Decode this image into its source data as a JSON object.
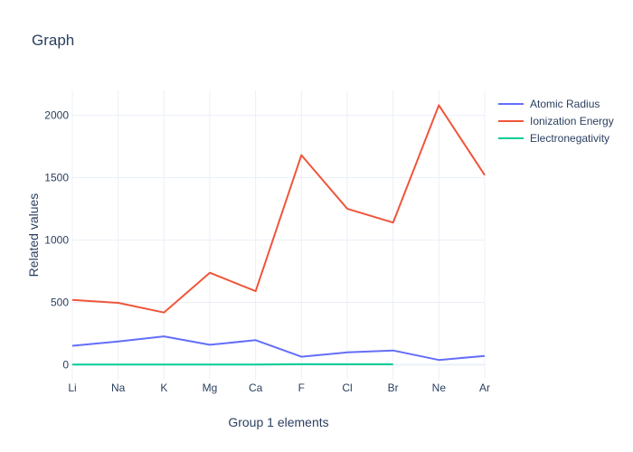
{
  "chart_data": {
    "type": "line",
    "title": "Graph",
    "xlabel": "Group 1 elements",
    "ylabel": "Related values",
    "categories": [
      "Li",
      "Na",
      "K",
      "Mg",
      "Ca",
      "F",
      "Cl",
      "Br",
      "Ne",
      "Ar"
    ],
    "y_ticks": [
      0,
      500,
      1000,
      1500,
      2000
    ],
    "ylim": [
      -120,
      2200
    ],
    "grid": true,
    "legend_position": "top-right",
    "series": [
      {
        "name": "Atomic Radius",
        "color": "#636efa",
        "values": [
          152,
          186,
          227,
          160,
          197,
          64,
          99,
          114,
          38,
          71
        ]
      },
      {
        "name": "Ionization Energy",
        "color": "#ef553b",
        "values": [
          520,
          496,
          419,
          738,
          590,
          1681,
          1251,
          1140,
          2081,
          1521
        ]
      },
      {
        "name": "Electronegativity",
        "color": "#00cc96",
        "values": [
          0.98,
          0.93,
          0.82,
          1.31,
          1.0,
          3.98,
          3.16,
          2.96,
          null,
          null
        ]
      }
    ]
  }
}
